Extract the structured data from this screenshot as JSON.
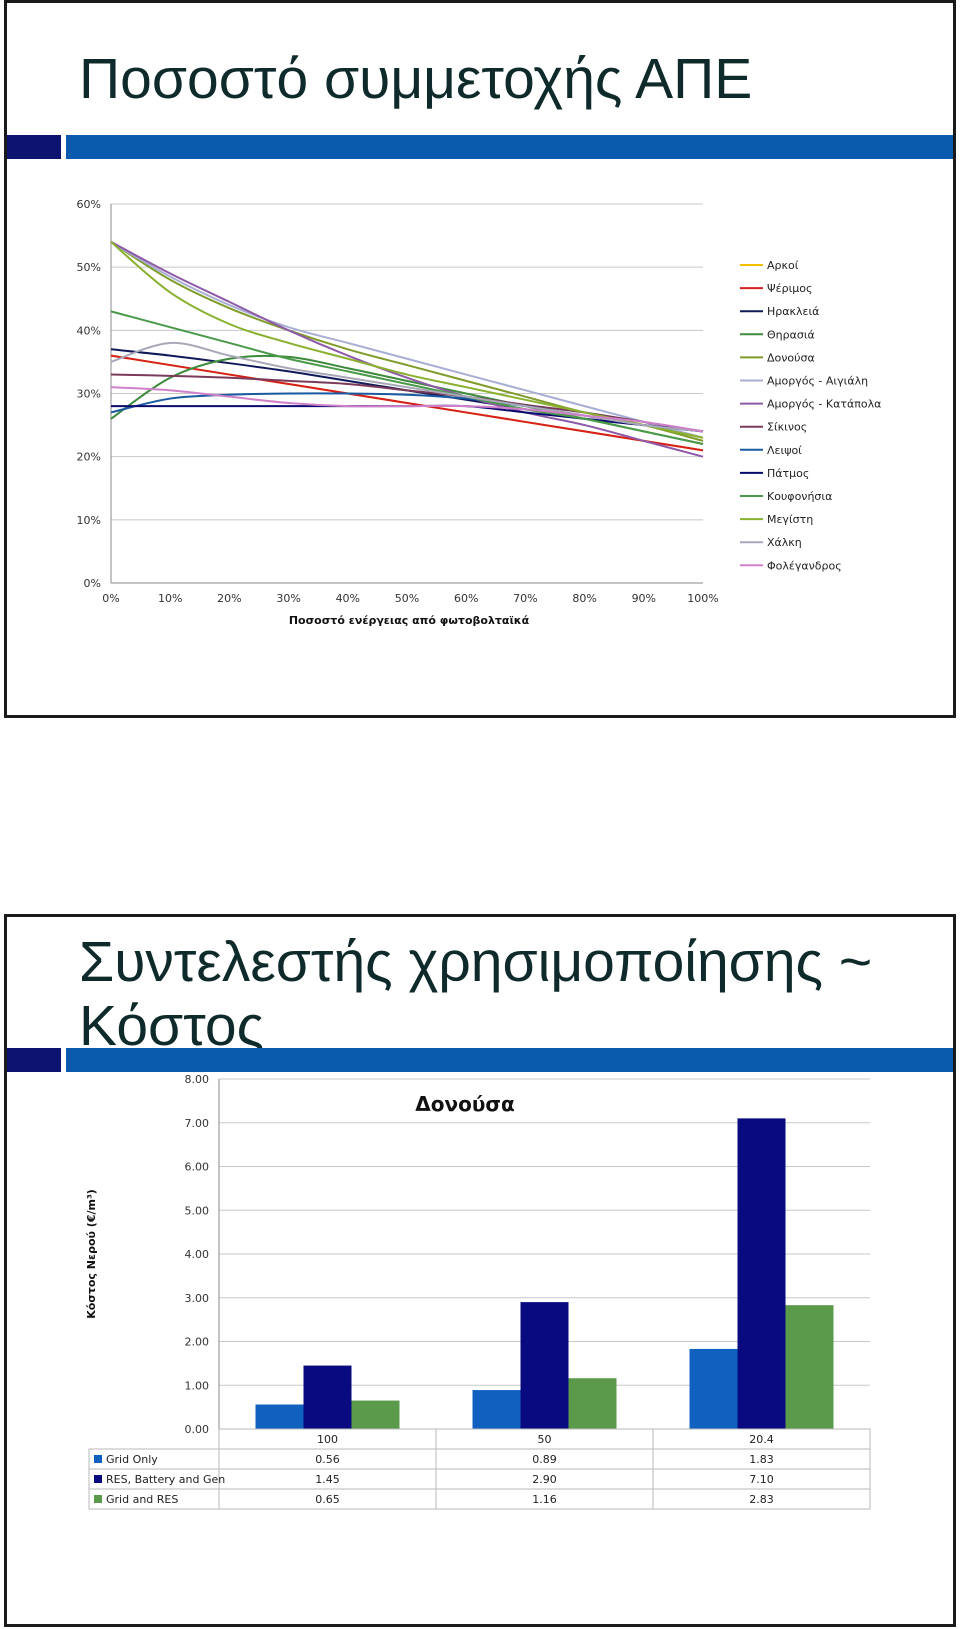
{
  "slide1": {
    "title": "Ποσοστό συμμετοχής ΑΠΕ",
    "colors": {
      "accent_dark": "#0d1470",
      "accent_blue": "#0a5aae",
      "title_text": "#0f2a2a"
    }
  },
  "slide2": {
    "title_line1": "Συντελεστής χρησιμοποίησης ~",
    "title_line2": "Κόστος"
  },
  "chart_data": [
    {
      "type": "line",
      "title": "",
      "xlabel": "Ποσοστό ενέργειας από φωτοβολταϊκά",
      "ylabel": "",
      "x": [
        0,
        10,
        20,
        30,
        40,
        50,
        60,
        70,
        80,
        90,
        100
      ],
      "x_tick_labels": [
        "0%",
        "10%",
        "20%",
        "30%",
        "40%",
        "50%",
        "60%",
        "70%",
        "80%",
        "90%",
        "100%"
      ],
      "y_tick_labels": [
        "0%",
        "10%",
        "20%",
        "30%",
        "40%",
        "50%",
        "60%"
      ],
      "xlim": [
        0,
        100
      ],
      "ylim": [
        0,
        60
      ],
      "grid": true,
      "legend": "right",
      "series": [
        {
          "name": "Αρκοί",
          "color": "#f2c000",
          "values": [
            36,
            34.5,
            33,
            31.5,
            30,
            28.5,
            27,
            25.5,
            24,
            22.5,
            21
          ]
        },
        {
          "name": "Ψέριμος",
          "color": "#d62020",
          "values": [
            36,
            34.5,
            33,
            31.5,
            30,
            28.5,
            27,
            25.5,
            24,
            22.5,
            21
          ]
        },
        {
          "name": "Ηρακλειά",
          "color": "#101a5a",
          "values": [
            37,
            36,
            34.8,
            33.5,
            32,
            30.5,
            29,
            27.5,
            26,
            25,
            24
          ]
        },
        {
          "name": "Θηρασιά",
          "color": "#3c8a3c",
          "values": [
            26,
            32.5,
            35.5,
            35.8,
            34,
            32,
            30,
            28,
            26,
            24,
            22
          ]
        },
        {
          "name": "Δονούσα",
          "color": "#7f9b2a",
          "values": [
            54,
            48,
            43.5,
            40,
            37,
            34.5,
            32,
            29.5,
            27,
            25,
            22.5
          ]
        },
        {
          "name": "Αμοργός - Αιγιάλη",
          "color": "#a8aed4",
          "values": [
            54,
            48.5,
            44,
            40.5,
            38,
            35.5,
            33,
            30.5,
            28,
            25.5,
            23
          ]
        },
        {
          "name": "Αμοργός - Κατάπολα",
          "color": "#8e5aa8",
          "values": [
            54,
            49,
            44.5,
            40,
            36,
            32.5,
            29.5,
            27,
            25,
            22.5,
            20
          ]
        },
        {
          "name": "Σίκινος",
          "color": "#7a3a5a",
          "values": [
            33,
            32.8,
            32.5,
            32,
            31.5,
            30.5,
            29.5,
            28.2,
            27,
            25.5,
            24
          ]
        },
        {
          "name": "Λειψοί",
          "color": "#1a5aa0",
          "values": [
            27,
            29.2,
            29.8,
            30,
            30,
            29.8,
            29.2,
            28,
            26.5,
            25,
            24
          ]
        },
        {
          "name": "Πάτμος",
          "color": "#0a0a6e",
          "values": [
            28,
            28,
            28,
            28,
            28,
            28,
            28,
            27,
            26,
            25,
            24
          ]
        },
        {
          "name": "Κουφονήσια",
          "color": "#4a9a4a",
          "values": [
            43,
            40.5,
            38,
            35.5,
            33.5,
            31.5,
            29.5,
            27.5,
            26,
            24,
            22
          ]
        },
        {
          "name": "Μεγίστη",
          "color": "#8ab030",
          "values": [
            54,
            46,
            41,
            38,
            35.5,
            33,
            31,
            29,
            27,
            25,
            23
          ]
        },
        {
          "name": "Χάλκη",
          "color": "#a8a8b8",
          "values": [
            35,
            38,
            36,
            34,
            32.5,
            31,
            29.5,
            28,
            26.5,
            25,
            24
          ]
        },
        {
          "name": "Φολέγανδρος",
          "color": "#d080c8",
          "values": [
            31,
            30.5,
            29.5,
            28.5,
            28,
            28,
            28,
            27.5,
            26.5,
            25.5,
            24
          ]
        }
      ]
    },
    {
      "type": "bar",
      "title": "Δονούσα",
      "xlabel": "",
      "ylabel": "Κόστος Νερού (€/m³)",
      "categories": [
        "100",
        "50",
        "20.4"
      ],
      "y_tick_labels": [
        "0.00",
        "1.00",
        "2.00",
        "3.00",
        "4.00",
        "5.00",
        "6.00",
        "7.00",
        "8.00"
      ],
      "ylim": [
        0,
        8
      ],
      "grid": true,
      "legend": "data table",
      "series": [
        {
          "name": "Grid Only",
          "color": "#1060c0",
          "values": [
            0.56,
            0.89,
            1.83
          ],
          "labels": [
            "0.56",
            "0.89",
            "1.83"
          ]
        },
        {
          "name": "RES, Battery and Gen",
          "color": "#0a0a80",
          "values": [
            1.45,
            2.9,
            7.1
          ],
          "labels": [
            "1.45",
            "2.90",
            "7.10"
          ]
        },
        {
          "name": "Grid and RES",
          "color": "#5a9a4a",
          "values": [
            0.65,
            1.16,
            2.83
          ],
          "labels": [
            "0.65",
            "1.16",
            "2.83"
          ]
        }
      ]
    }
  ]
}
